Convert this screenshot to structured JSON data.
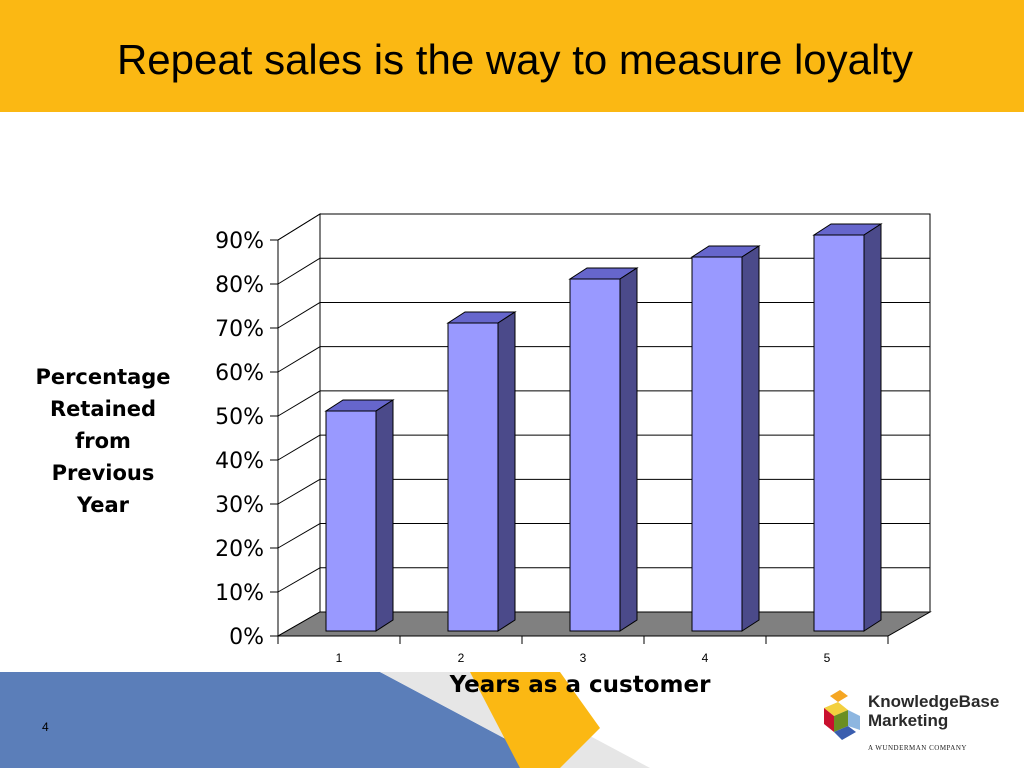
{
  "slide": {
    "title": "Repeat sales is the way to measure loyalty",
    "page_number": "4",
    "logo_name_line1": "KnowledgeBase",
    "logo_name_line2": "Marketing",
    "logo_tagline": "A WUNDERMAN COMPANY",
    "colors": {
      "title_bar": "#FBB813",
      "footer_blue": "#5B7EB9",
      "footer_gold": "#FBB813"
    }
  },
  "chart_data": {
    "type": "bar",
    "style": "3d-column",
    "categories": [
      "1",
      "2",
      "3",
      "4",
      "5"
    ],
    "values": [
      0.5,
      0.7,
      0.8,
      0.85,
      0.9
    ],
    "ylim": [
      0,
      0.9
    ],
    "yticks": [
      "0%",
      "10%",
      "20%",
      "30%",
      "40%",
      "50%",
      "60%",
      "70%",
      "80%",
      "90%"
    ],
    "ylabel_lines": [
      "Percentage",
      "Retained",
      "from",
      "Previous",
      "Year"
    ],
    "xlabel": "Years as a customer",
    "grid": true,
    "legend": "none",
    "colors": {
      "bar_front": "#9999FF",
      "bar_side": "#4B4A8A",
      "bar_top": "#6666CC",
      "floor": "#808080"
    }
  }
}
